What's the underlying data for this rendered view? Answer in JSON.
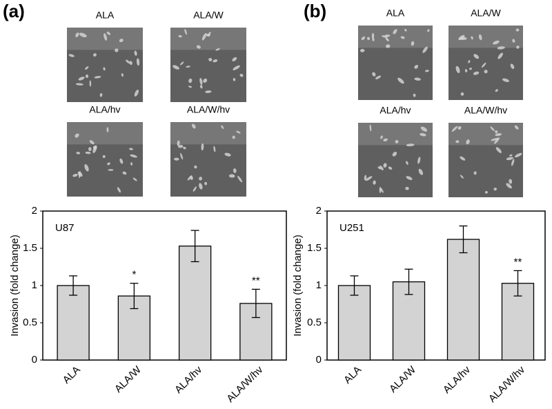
{
  "chart_data": [
    {
      "type": "bar",
      "panel_label": "(a)",
      "title": "U87",
      "image_labels": [
        "ALA",
        "ALA/W",
        "ALA/hv",
        "ALA/W/hv"
      ],
      "ylabel": "Invasion (fold change)",
      "categories": [
        "ALA",
        "ALA/W",
        "ALA/hv",
        "ALA/W/hv"
      ],
      "values": [
        1.0,
        0.86,
        1.53,
        0.76
      ],
      "errors": [
        0.13,
        0.17,
        0.21,
        0.19
      ],
      "markers": [
        null,
        "*",
        null,
        "**"
      ],
      "color": "#d3d3d3",
      "ylim": [
        0,
        2
      ],
      "yticks": [
        0,
        0.5,
        1,
        1.5,
        2
      ]
    },
    {
      "type": "bar",
      "panel_label": "(b)",
      "title": "U251",
      "image_labels": [
        "ALA",
        "ALA/W",
        "ALA/hv",
        "ALA/W/hv"
      ],
      "ylabel": "Invasion (fold change)",
      "categories": [
        "ALA",
        "ALA/W",
        "ALA/hv",
        "ALA/W/hv"
      ],
      "values": [
        1.0,
        1.05,
        1.62,
        1.03
      ],
      "errors": [
        0.13,
        0.17,
        0.18,
        0.17
      ],
      "markers": [
        null,
        null,
        null,
        "**"
      ],
      "color": "#d3d3d3",
      "ylim": [
        0,
        2
      ],
      "yticks": [
        0,
        0.5,
        1,
        1.5,
        2
      ]
    }
  ]
}
